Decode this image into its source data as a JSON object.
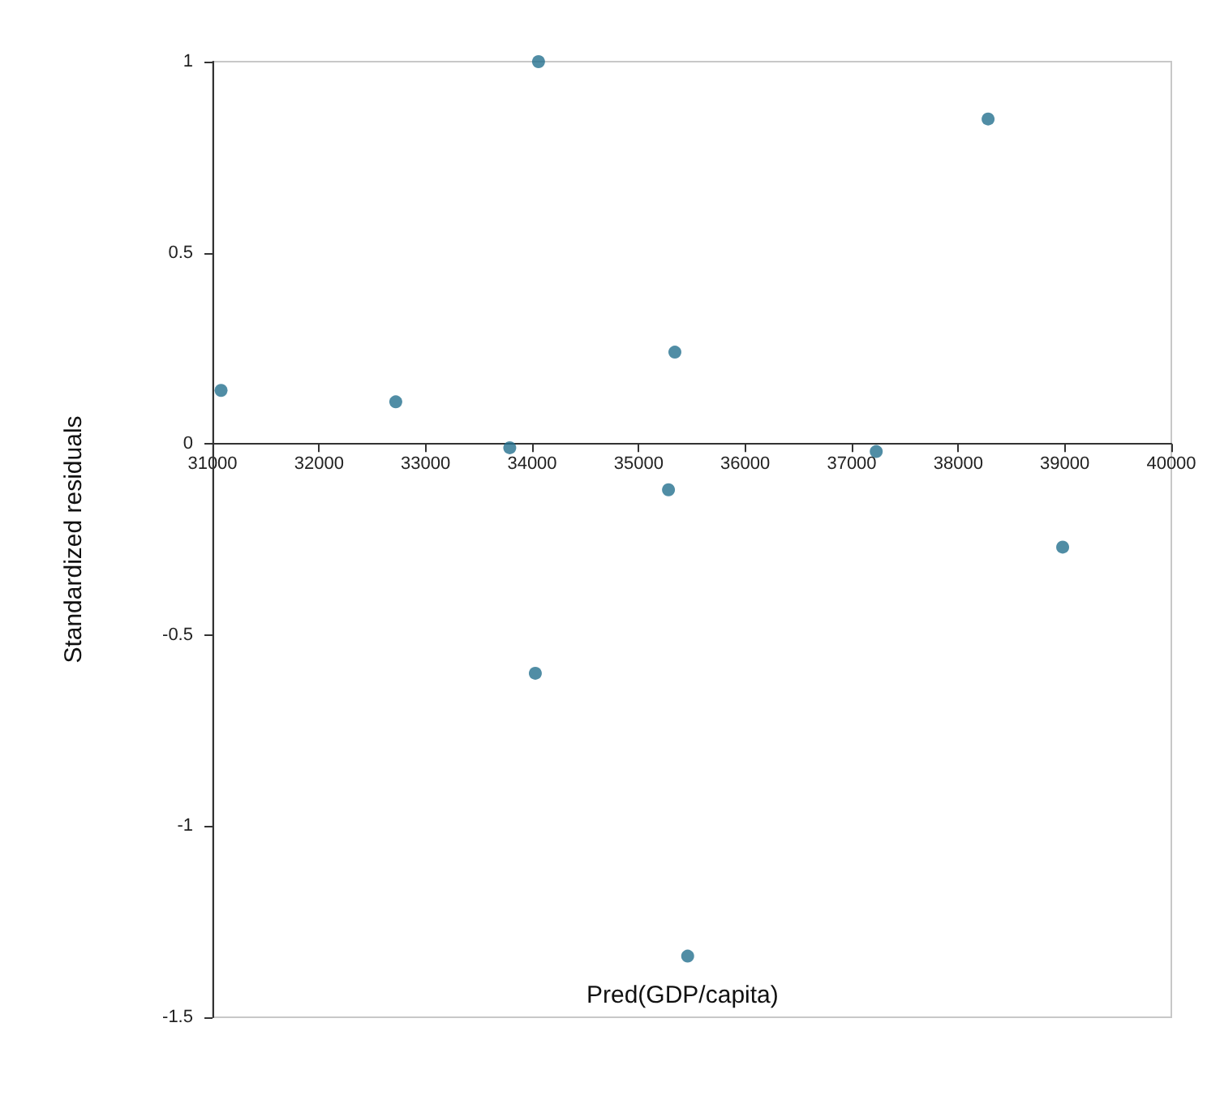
{
  "chart_data": {
    "type": "scatter",
    "xlabel": "Pred(GDP/capita)",
    "ylabel": "Standardized residuals",
    "x": [
      31080,
      32720,
      33790,
      34060,
      35340,
      35280,
      34030,
      35460,
      37230,
      38280,
      38980
    ],
    "series": [
      {
        "color": "#24708f",
        "values": [
          0.14,
          0.11,
          -0.01,
          1.0,
          0.24,
          -0.12,
          -0.6,
          -1.34,
          -0.02,
          0.85,
          -0.27
        ]
      }
    ],
    "xlim": [
      31000,
      40000
    ],
    "xticks": [
      31000,
      32000,
      33000,
      34000,
      35000,
      36000,
      37000,
      38000,
      39000,
      40000
    ],
    "ylim": [
      -1.5,
      1
    ],
    "yticks": [
      -1.5,
      -1,
      -0.5,
      0,
      0.5,
      1
    ],
    "grid": false,
    "marker": "circle"
  }
}
